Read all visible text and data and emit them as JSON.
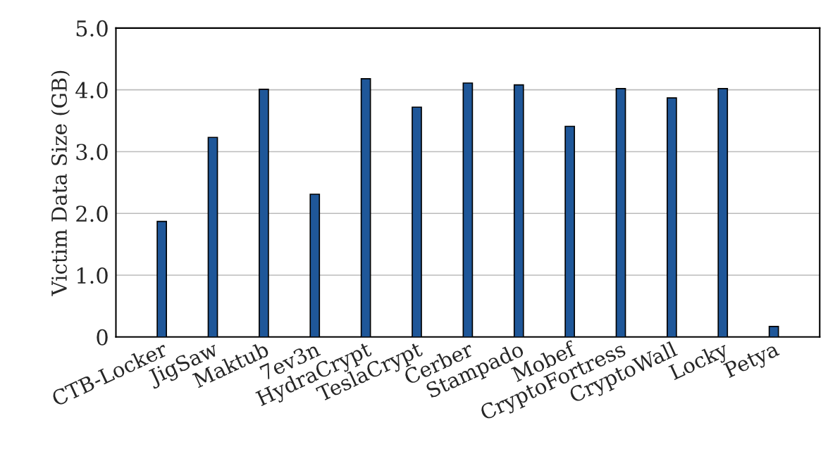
{
  "chart_data": {
    "type": "bar",
    "ylabel": "Victim Data Size (GB)",
    "categories": [
      "CTB-Locker",
      "JigSaw",
      "Maktub",
      "7ev3n",
      "HydraCrypt",
      "TeslaCrypt",
      "Cerber",
      "Stampado",
      "Mobef",
      "CryptoFortress",
      "CryptoWall",
      "Locky",
      "Petya"
    ],
    "values": [
      1.87,
      3.23,
      4.01,
      2.31,
      4.18,
      3.72,
      4.11,
      4.08,
      3.41,
      4.02,
      3.87,
      4.02,
      0.17
    ],
    "color": "#1f5799",
    "ylim": [
      0,
      5.0
    ],
    "yticks": [
      0,
      {
        "value": 1.0,
        "label": "1.0"
      },
      {
        "value": 2.0,
        "label": "2.0"
      },
      {
        "value": 3.0,
        "label": "3.0"
      },
      {
        "value": 4.0,
        "label": "4.0"
      },
      {
        "value": 5.0,
        "label": "5.0"
      }
    ],
    "grid": "y"
  }
}
